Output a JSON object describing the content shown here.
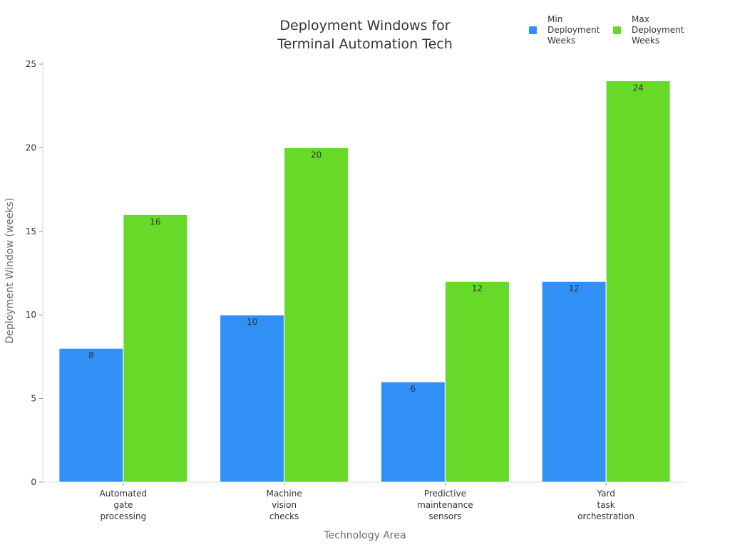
{
  "chart_data": {
    "type": "bar",
    "title": "Deployment Windows for Terminal Automation Tech",
    "title_lines": [
      "Deployment Windows for",
      "Terminal Automation Tech"
    ],
    "xlabel": "Technology Area",
    "ylabel": "Deployment Window (weeks)",
    "categories": [
      "Automated gate processing",
      "Machine vision checks",
      "Predictive maintenance sensors",
      "Yard task orchestration"
    ],
    "category_lines": [
      [
        "Automated",
        "gate",
        "processing"
      ],
      [
        "Machine",
        "vision",
        "checks"
      ],
      [
        "Predictive",
        "maintenance",
        "sensors"
      ],
      [
        "Yard",
        "task",
        "orchestration"
      ]
    ],
    "series": [
      {
        "name": "Min Deployment Weeks",
        "name_lines": [
          "Min",
          "Deployment",
          "Weeks"
        ],
        "color": "#3190f5",
        "values": [
          8,
          10,
          6,
          12
        ]
      },
      {
        "name": "Max Deployment Weeks",
        "name_lines": [
          "Max",
          "Deployment",
          "Weeks"
        ],
        "color": "#66d929",
        "values": [
          16,
          20,
          12,
          24
        ]
      }
    ],
    "ylim": [
      0,
      25
    ],
    "yticks": [
      0,
      5,
      10,
      15,
      20,
      25
    ],
    "grid": false,
    "legend_position": "top-right",
    "data_labels": true
  }
}
